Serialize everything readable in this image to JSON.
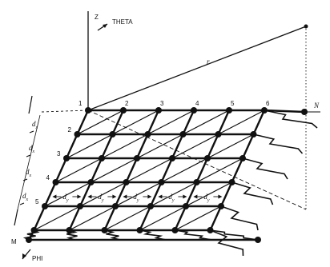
{
  "axes": {
    "z_label": "Z",
    "theta_label": "THETA",
    "phi_label": "PHI",
    "r_label": "r",
    "n_label": "N",
    "m_label": "M"
  },
  "column_labels": [
    "1",
    "2",
    "3",
    "4",
    "5",
    "6"
  ],
  "row_labels": [
    "1",
    "2",
    "3",
    "4",
    "5"
  ],
  "spacing": {
    "dx_label": "d",
    "dx_sub": "x",
    "dy_label": "d",
    "dy_sub": "y"
  }
}
